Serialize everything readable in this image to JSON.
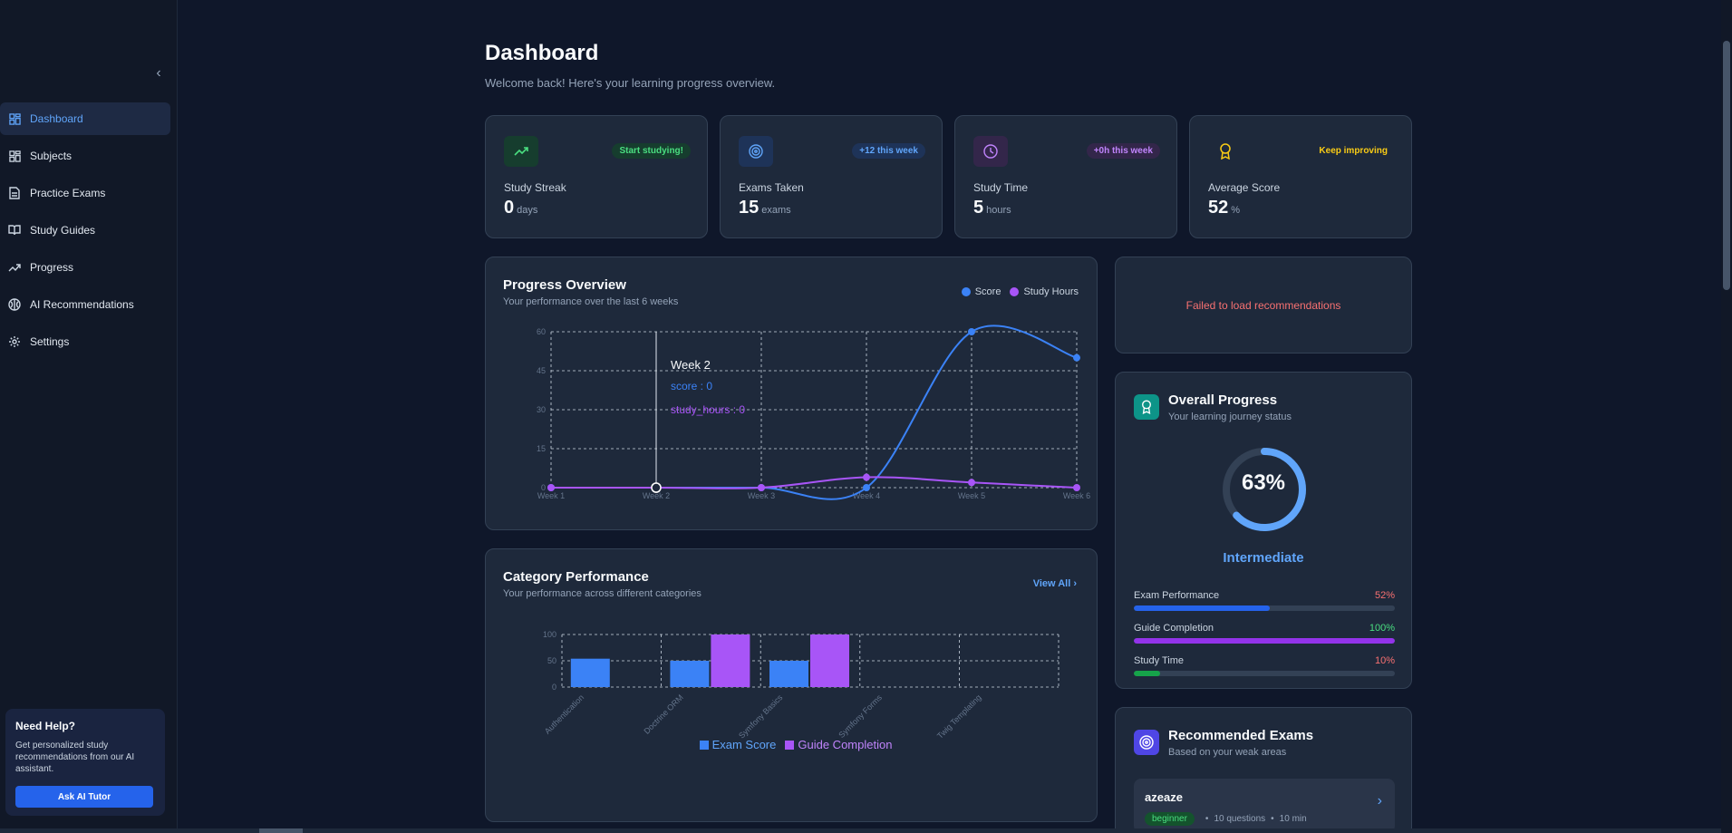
{
  "sidebar": {
    "items": [
      {
        "label": "Dashboard",
        "icon": "dashboard-icon",
        "active": true
      },
      {
        "label": "Subjects",
        "icon": "grid-icon"
      },
      {
        "label": "Practice Exams",
        "icon": "document-icon"
      },
      {
        "label": "Study Guides",
        "icon": "book-icon"
      },
      {
        "label": "Progress",
        "icon": "trending-icon"
      },
      {
        "label": "AI Recommendations",
        "icon": "brain-icon"
      },
      {
        "label": "Settings",
        "icon": "gear-icon"
      }
    ],
    "help": {
      "title": "Need Help?",
      "text": "Get personalized study recommendations from our AI assistant.",
      "button": "Ask AI Tutor"
    }
  },
  "header": {
    "title": "Dashboard",
    "subtitle": "Welcome back! Here's your learning progress overview."
  },
  "stats": [
    {
      "label": "Study Streak",
      "value": "0",
      "unit": "days",
      "badge": "Start studying!",
      "icon": "trending-up-icon",
      "color": "#4ade80"
    },
    {
      "label": "Exams Taken",
      "value": "15",
      "unit": "exams",
      "badge": "+12 this week",
      "icon": "target-icon",
      "color": "#60a5fa"
    },
    {
      "label": "Study Time",
      "value": "5",
      "unit": "hours",
      "badge": "+0h this week",
      "icon": "clock-icon",
      "color": "#c084fc"
    },
    {
      "label": "Average Score",
      "value": "52",
      "unit": "%",
      "badge": "Keep improving",
      "icon": "award-icon",
      "color": "#facc15"
    }
  ],
  "progress_overview": {
    "title": "Progress Overview",
    "subtitle": "Your performance over the last 6 weeks",
    "legend": [
      "Score",
      "Study Hours"
    ],
    "tooltip": {
      "week": "Week 2",
      "score": "score : 0",
      "hours": "study_hours : 0"
    }
  },
  "category_performance": {
    "title": "Category Performance",
    "subtitle": "Your performance across different categories",
    "view_all": "View All",
    "legend": [
      "Exam Score",
      "Guide Completion"
    ]
  },
  "recommendations": {
    "error": "Failed to load recommendations"
  },
  "overall_progress": {
    "title": "Overall Progress",
    "subtitle": "Your learning journey status",
    "percent": 63,
    "percent_label": "63%",
    "level": "Intermediate",
    "bars": [
      {
        "label": "Exam Performance",
        "value_label": "52%",
        "value": 52,
        "color": "#2563eb",
        "text_color": "#f87171"
      },
      {
        "label": "Guide Completion",
        "value_label": "100%",
        "value": 100,
        "color": "#9333ea",
        "text_color": "#4ade80"
      },
      {
        "label": "Study Time",
        "value_label": "10%",
        "value": 10,
        "color": "#16a34a",
        "text_color": "#f87171"
      }
    ]
  },
  "recommended_exams": {
    "title": "Recommended Exams",
    "subtitle": "Based on your weak areas",
    "items": [
      {
        "name": "azeaze",
        "level": "beginner",
        "questions": "10 questions",
        "duration": "10 min"
      }
    ]
  },
  "chart_data": [
    {
      "type": "line",
      "x": [
        "Week 1",
        "Week 2",
        "Week 3",
        "Week 4",
        "Week 5",
        "Week 6"
      ],
      "series": [
        {
          "name": "Score",
          "color": "#3b82f6",
          "values": [
            0,
            0,
            0,
            0,
            60,
            50
          ]
        },
        {
          "name": "Study Hours",
          "color": "#a855f7",
          "values": [
            0,
            0,
            0,
            4,
            2,
            0
          ]
        }
      ],
      "yticks": [
        0,
        15,
        30,
        45,
        60
      ],
      "ylim": [
        0,
        60
      ],
      "grid": true
    },
    {
      "type": "bar",
      "categories": [
        "Authentication",
        "Doctrine ORM",
        "Symfony Basics",
        "Symfony Forms",
        "Twig Templating"
      ],
      "series": [
        {
          "name": "Exam Score",
          "color": "#3b82f6",
          "values": [
            54,
            50,
            50,
            0,
            0
          ]
        },
        {
          "name": "Guide Completion",
          "color": "#a855f7",
          "values": [
            0,
            100,
            100,
            0,
            0
          ]
        }
      ],
      "yticks": [
        0,
        50,
        100
      ],
      "ylim": [
        0,
        100
      ],
      "grid": true
    }
  ]
}
